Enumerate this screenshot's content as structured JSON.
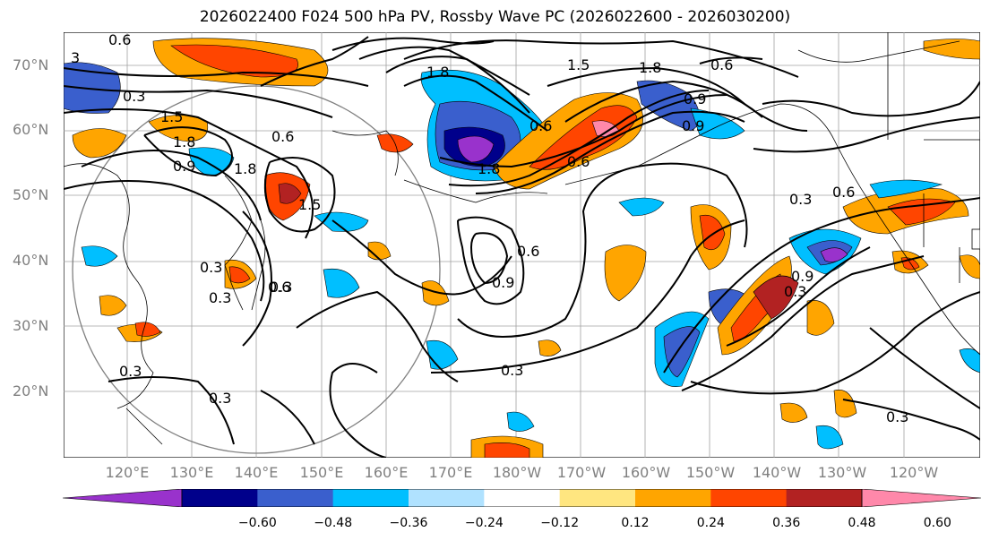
{
  "title": "2026022400 F024 500 hPa PV, Rossby Wave PC (2026022600 - 2026030200)",
  "lat_labels": [
    "70°N",
    "60°N",
    "50°N",
    "40°N",
    "30°N",
    "20°N"
  ],
  "lon_labels": [
    "120°E",
    "130°E",
    "140°E",
    "150°E",
    "160°E",
    "170°E",
    "180°W",
    "170°W",
    "160°W",
    "150°W",
    "140°W",
    "130°W",
    "120°W"
  ],
  "contour_labels": [
    "0.6",
    "3",
    "0.3",
    "1.5",
    "1.8",
    "0.6",
    "0.9",
    "1.8",
    "1.5",
    "0.3",
    "0.6",
    "0.9",
    "0.6",
    "1.8",
    "0.3",
    "0.6",
    "1.5",
    "1.8",
    "0.9",
    "1.8",
    "0.6",
    "0.6",
    "0.9",
    "0.3",
    "0.3",
    "0.9",
    "0.6",
    "0.3",
    "0.3",
    "0.3",
    "0.3",
    "0.3"
  ],
  "colorbar": {
    "ticks": [
      "−0.60",
      "−0.48",
      "−0.36",
      "−0.24",
      "−0.12",
      "0.12",
      "0.24",
      "0.36",
      "0.48",
      "0.60"
    ],
    "colors": [
      "#9932cc",
      "#00008b",
      "#3a5fcd",
      "#00bfff",
      "#b0e2ff",
      "#ffffff",
      "#ffe680",
      "#ffa500",
      "#ff4500",
      "#b22222",
      "#ff88aa"
    ]
  },
  "colors": {
    "neg_strong": "#9932cc",
    "neg_dark": "#00008b",
    "neg_mid": "#3a5fcd",
    "neg_light": "#00bfff",
    "neg_pale": "#b0e2ff",
    "pos_pale": "#ffe680",
    "pos_light": "#ffa500",
    "pos_mid": "#ff4500",
    "pos_dark": "#b22222",
    "pos_strong": "#ff88aa",
    "gridline": "#a0a0a0",
    "coast": "#000000",
    "contour": "#000000",
    "axis_text": "#808080"
  }
}
